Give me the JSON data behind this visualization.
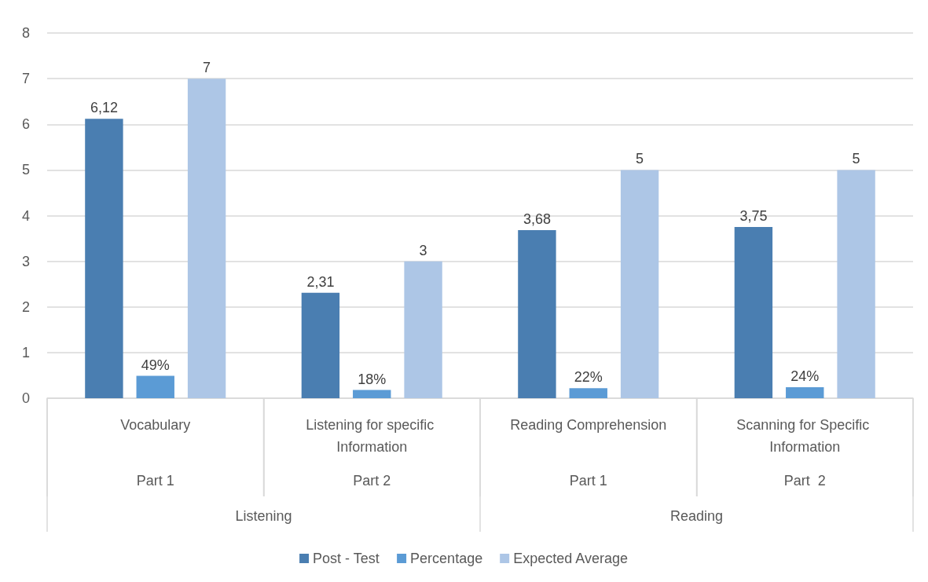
{
  "chart_data": {
    "type": "bar",
    "categories": [
      "Vocabulary",
      "Listening for specific Information",
      "Reading Comprehension",
      "Scanning for Specific Information"
    ],
    "series": [
      {
        "name": "Post - Test",
        "color": "#4a7eb1",
        "values": [
          6.12,
          2.31,
          3.68,
          3.75
        ],
        "value_labels": [
          "6,12",
          "2,31",
          "3,68",
          "3,75"
        ]
      },
      {
        "name": "Percentage",
        "color": "#5b9bd5",
        "values": [
          0.49,
          0.18,
          0.22,
          0.24
        ],
        "value_labels": [
          "49%",
          "18%",
          "22%",
          "24%"
        ]
      },
      {
        "name": "Expected Average",
        "color": "#adc6e6",
        "values": [
          7,
          3,
          5,
          5
        ],
        "value_labels": [
          "7",
          "3",
          "5",
          "5"
        ]
      }
    ],
    "annotations": [
      "Part 1",
      "Part 2",
      "Part 1",
      "Part  2",
      "Listening",
      "Reading"
    ],
    "ylim": [
      0,
      8
    ],
    "yticks": [
      0,
      1,
      2,
      3,
      4,
      5,
      6,
      7,
      8
    ],
    "grid": "y",
    "legend": "bottom"
  }
}
